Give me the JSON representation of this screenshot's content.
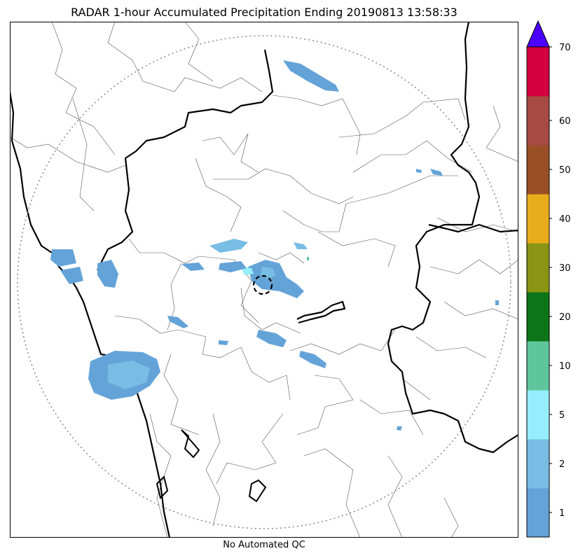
{
  "title": "RADAR 1-hour Accumulated Precipitation Ending 20190813 13:58:33",
  "footer_text": "No Automated QC",
  "colorbar": {
    "colors": [
      "#64a3d8",
      "#78bde4",
      "#96eefc",
      "#5fc59b",
      "#0d7519",
      "#8a9516",
      "#e9ad1b",
      "#9b4f26",
      "#a64a44",
      "#d4003f"
    ],
    "extend_color": "#4b00ff",
    "tick_values": [
      "1",
      "2",
      "5",
      "10",
      "20",
      "30",
      "40",
      "50",
      "60",
      "70"
    ]
  },
  "map": {
    "range_ring": "dotted",
    "center_marker": "dashed-circle"
  }
}
